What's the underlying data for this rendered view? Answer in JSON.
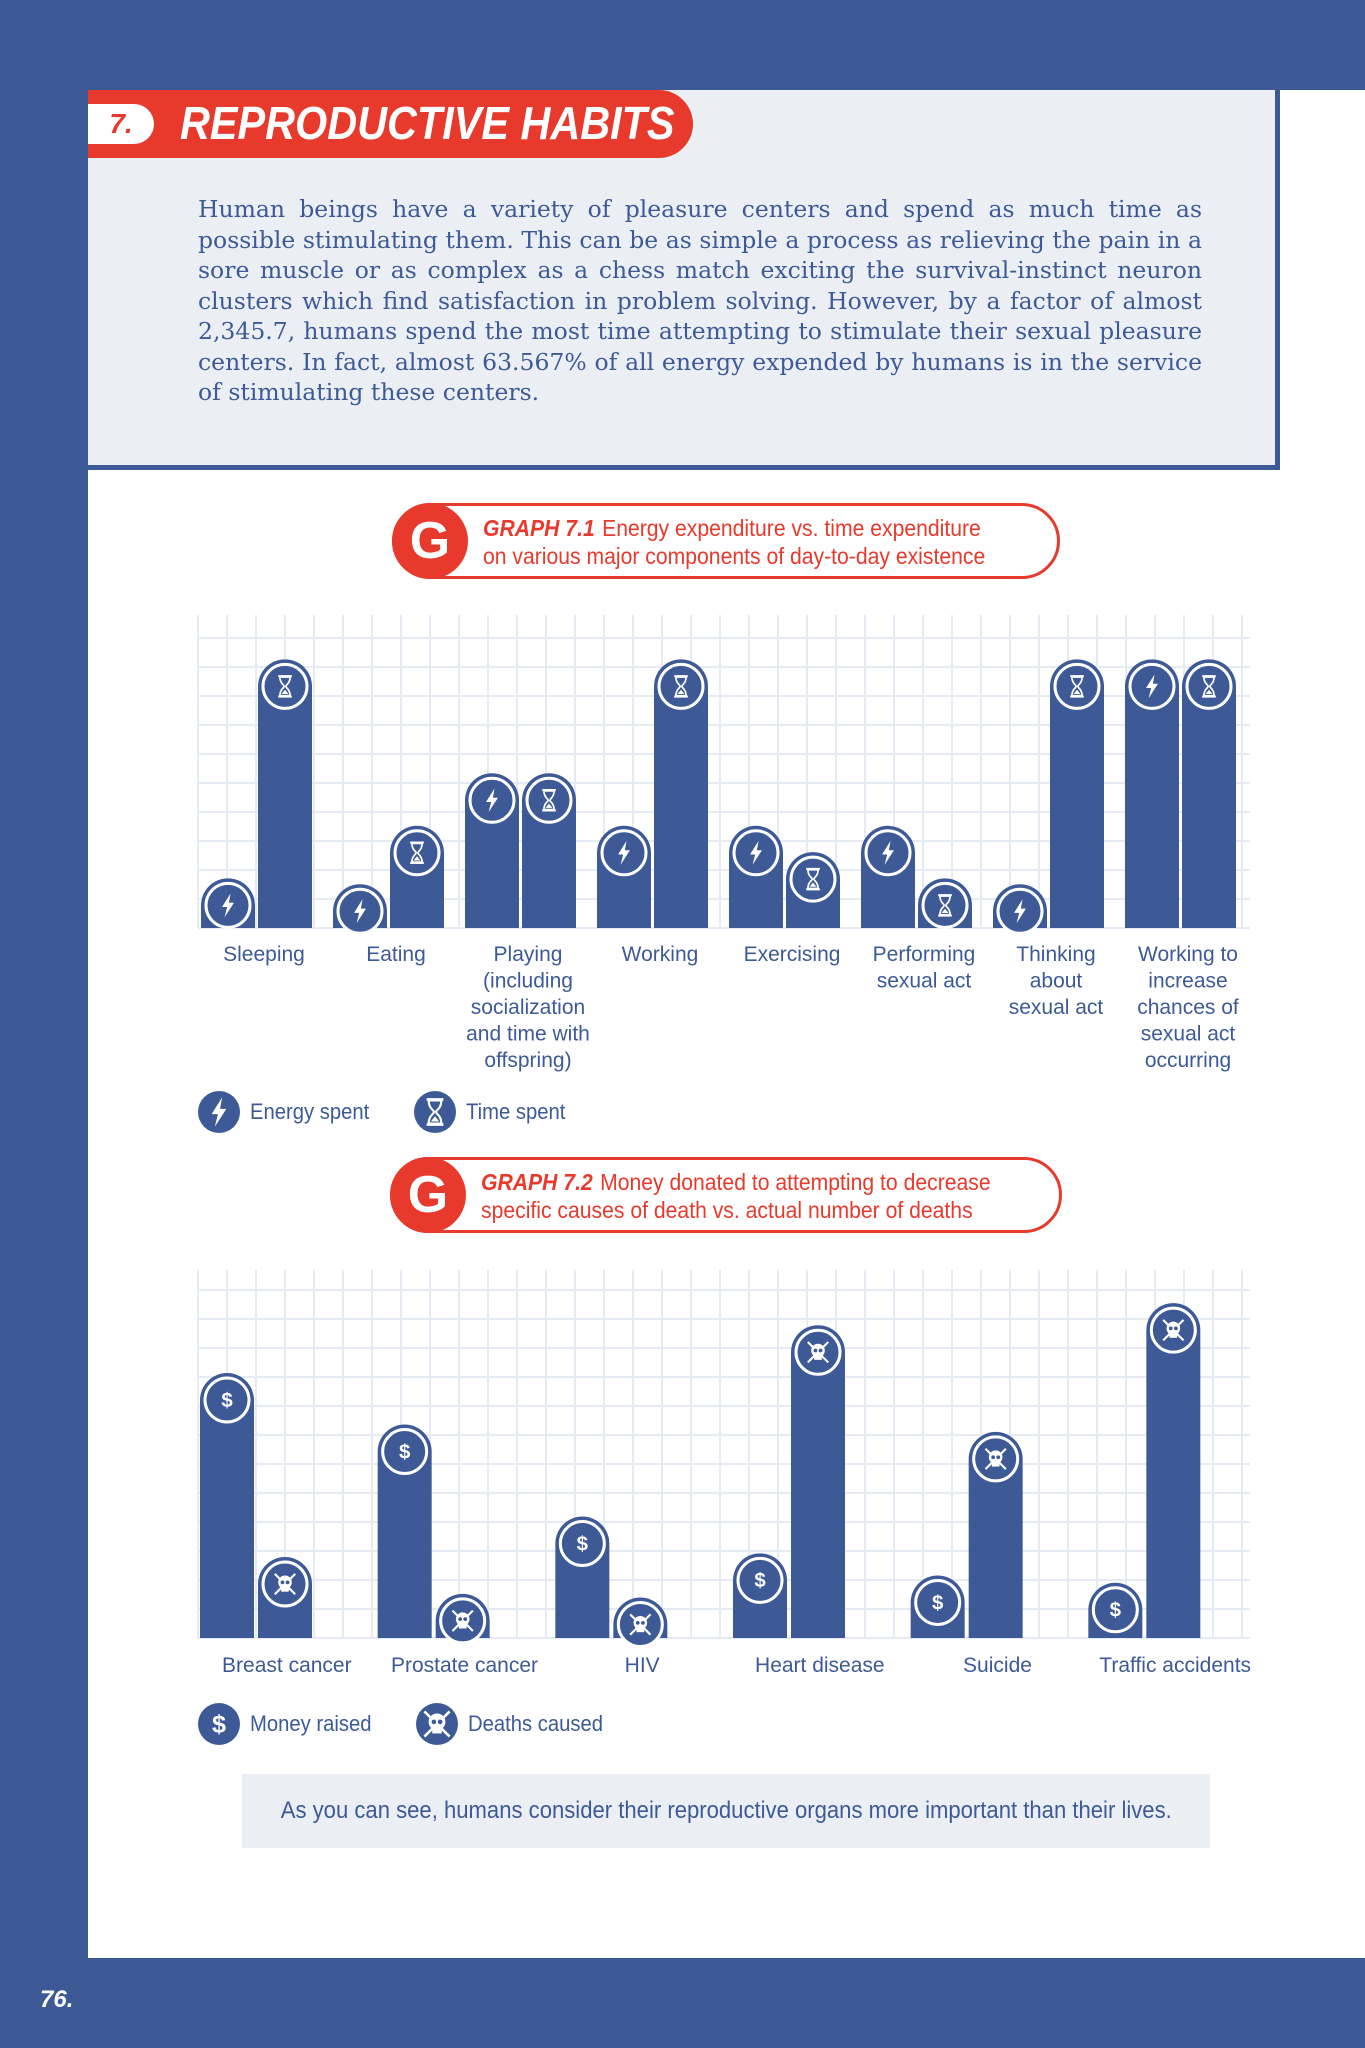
{
  "section": {
    "number": "7.",
    "title": "REPRODUCTIVE HABITS",
    "body": "Human beings have a variety of pleasure centers and spend as much time as possible stimulating them. This can be as simple a process as relieving the pain in a sore muscle or as complex as a chess match exciting the survival-instinct neuron clusters which find satisfaction in problem solving. However, by a factor of almost 2,345.7, humans spend the most time attempting to stimulate their sexual pleasure centers. In fact, almost 63.567% of all energy expended by humans is in the service of stimulating these centers."
  },
  "graph1": {
    "badge": "G",
    "label": "GRAPH 7.1",
    "caption_line1": "Energy expenditure vs. time expenditure",
    "caption_line2": "on various major components of day-to-day existence",
    "legend": [
      {
        "icon": "lightning-icon",
        "label": "Energy spent"
      },
      {
        "icon": "hourglass-icon",
        "label": "Time spent"
      }
    ]
  },
  "graph2": {
    "badge": "G",
    "label": "GRAPH 7.2",
    "caption_line1": "Money donated to attempting to decrease",
    "caption_line2": "specific causes of death vs. actual number of deaths",
    "legend": [
      {
        "icon": "dollar-icon",
        "label": "Money raised"
      },
      {
        "icon": "skull-icon",
        "label": "Deaths caused"
      }
    ]
  },
  "conclusion": "As you can see, humans consider their reproductive organs more important than their lives.",
  "page_number": "76.",
  "colors": {
    "primary": "#3d5a97",
    "accent": "#e83a2c",
    "panel": "#ebeff4",
    "grid": "#e6ebf3"
  },
  "chart_data": [
    {
      "type": "bar",
      "categories": [
        [
          "Sleeping"
        ],
        [
          "Eating"
        ],
        [
          "Playing",
          "(including",
          "socialization",
          "and time with",
          "offspring)"
        ],
        [
          "Working"
        ],
        [
          "Exercising"
        ],
        [
          "Performing",
          "sexual act"
        ],
        [
          "Thinking",
          "about",
          "sexual act"
        ],
        [
          "Working to",
          "increase",
          "chances of",
          "sexual act",
          "occurring"
        ]
      ],
      "series": [
        {
          "name": "Energy spent",
          "icon": "lightning",
          "values": [
            17,
            15,
            53,
            35,
            35,
            35,
            15,
            92
          ]
        },
        {
          "name": "Time spent",
          "icon": "hourglass",
          "values": [
            92,
            35,
            53,
            92,
            26,
            17,
            92,
            92
          ]
        }
      ],
      "ylim": [
        0,
        100
      ],
      "grid": true
    },
    {
      "type": "bar",
      "categories": [
        [
          "Breast cancer"
        ],
        [
          "Prostate cancer"
        ],
        [
          "HIV"
        ],
        [
          "Heart disease"
        ],
        [
          "Suicide"
        ],
        [
          "Traffic accidents"
        ]
      ],
      "series": [
        {
          "name": "Money raised",
          "icon": "dollar",
          "values": [
            72,
            58,
            33,
            23,
            17,
            15
          ]
        },
        {
          "name": "Deaths caused",
          "icon": "skull",
          "values": [
            22,
            12,
            11,
            85,
            56,
            91
          ]
        }
      ],
      "ylim": [
        0,
        100
      ],
      "grid": true
    }
  ]
}
